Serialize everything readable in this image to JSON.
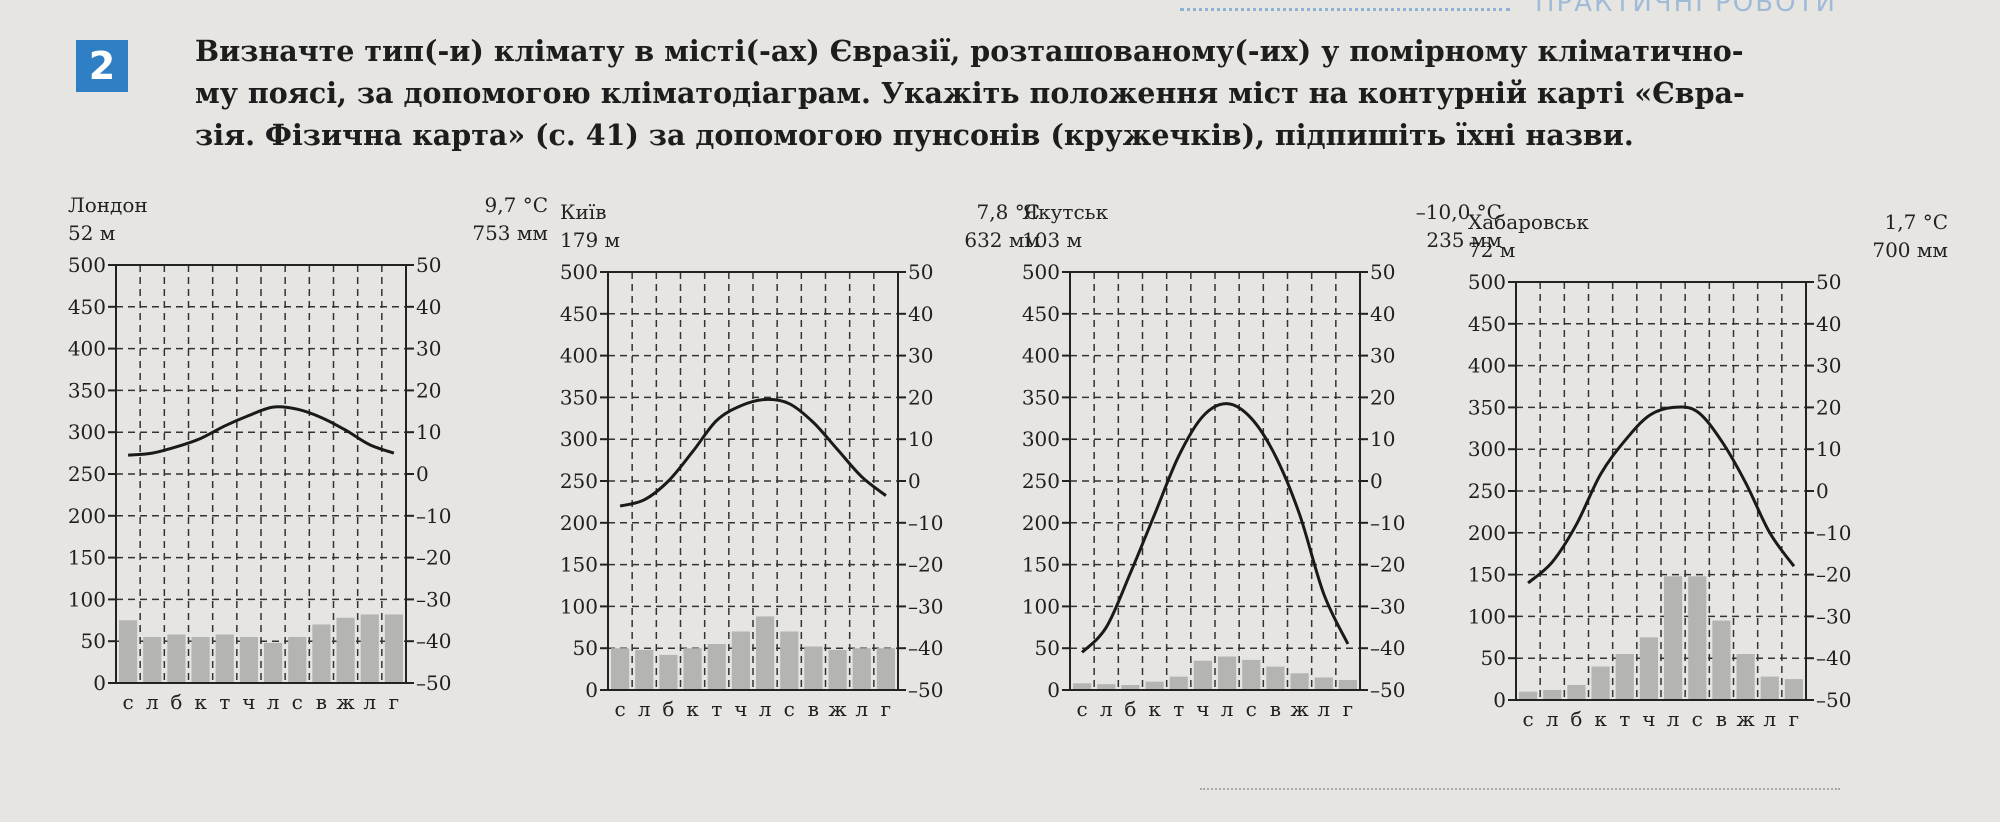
{
  "header": {
    "section_label": "ПРАКТИЧНІ РОБОТИ"
  },
  "task": {
    "number": "2",
    "lines": [
      "Визначте тип(-и) клімату в місті(-ах) Євразії, розташованому(-их) у помірному кліматично-",
      "му поясі, за допомогою кліматодіаграм. Укажіть положення міст на контурній карті «Євра-",
      "зія. Фізична карта» (с. 41) за допомогою пунсонів (кружечків), підпишіть їхні назви."
    ]
  },
  "stations": [
    {
      "name": "Лондон",
      "altitude": "52 м",
      "mean_temp": "9,7 °С",
      "annual_precip": "753 мм"
    },
    {
      "name": "Київ",
      "altitude": "179 м",
      "mean_temp": "7,8 °С",
      "annual_precip": "632 мм"
    },
    {
      "name": "Якутськ",
      "altitude": "103 м",
      "mean_temp": "–10,0 °С",
      "annual_precip": "235 мм"
    },
    {
      "name": "Хабаровськ",
      "altitude": "72 м",
      "mean_temp": "1,7 °С",
      "annual_precip": "700 мм"
    }
  ],
  "chart_data": [
    {
      "type": "bar+line",
      "title": "Лондон",
      "categories": [
        "с",
        "л",
        "б",
        "к",
        "т",
        "ч",
        "л",
        "с",
        "в",
        "ж",
        "л",
        "г"
      ],
      "left_axis": {
        "ticks": [
          0,
          50,
          100,
          150,
          200,
          250,
          300,
          350,
          400,
          450,
          500
        ],
        "ylim": [
          0,
          500
        ]
      },
      "right_axis": {
        "ticks": [
          -50,
          -40,
          -30,
          -20,
          -10,
          0,
          10,
          20,
          30,
          40,
          50
        ],
        "ylim": [
          -50,
          50
        ]
      },
      "series": [
        {
          "kind": "precipitation",
          "values": [
            75,
            55,
            58,
            55,
            58,
            55,
            48,
            55,
            70,
            78,
            82,
            82
          ]
        },
        {
          "kind": "temperature",
          "values": [
            4.5,
            5,
            6.5,
            8.5,
            11.5,
            14,
            16,
            15.5,
            13.5,
            10.5,
            7,
            5
          ]
        }
      ]
    },
    {
      "type": "bar+line",
      "title": "Київ",
      "categories": [
        "с",
        "л",
        "б",
        "к",
        "т",
        "ч",
        "л",
        "с",
        "в",
        "ж",
        "л",
        "г"
      ],
      "left_axis": {
        "ticks": [
          0,
          50,
          100,
          150,
          200,
          250,
          300,
          350,
          400,
          450,
          500
        ],
        "ylim": [
          0,
          500
        ]
      },
      "right_axis": {
        "ticks": [
          -50,
          -40,
          -30,
          -20,
          -10,
          0,
          10,
          20,
          30,
          40,
          50
        ],
        "ylim": [
          -50,
          50
        ]
      },
      "series": [
        {
          "kind": "precipitation",
          "values": [
            50,
            48,
            42,
            50,
            55,
            70,
            88,
            70,
            52,
            48,
            50,
            50
          ]
        },
        {
          "kind": "temperature",
          "values": [
            -6,
            -4.5,
            0,
            7,
            14.5,
            18,
            19.5,
            18.5,
            14,
            7.5,
            1,
            -3.5
          ]
        }
      ]
    },
    {
      "type": "bar+line",
      "title": "Якутськ",
      "categories": [
        "с",
        "л",
        "б",
        "к",
        "т",
        "ч",
        "л",
        "с",
        "в",
        "ж",
        "л",
        "г"
      ],
      "left_axis": {
        "ticks": [
          0,
          50,
          100,
          150,
          200,
          250,
          300,
          350,
          400,
          450,
          500
        ],
        "ylim": [
          0,
          500
        ]
      },
      "right_axis": {
        "ticks": [
          -50,
          -40,
          -30,
          -20,
          -10,
          0,
          10,
          20,
          30,
          40,
          50
        ],
        "ylim": [
          -50,
          50
        ]
      },
      "series": [
        {
          "kind": "precipitation",
          "values": [
            8,
            7,
            6,
            10,
            16,
            35,
            40,
            36,
            28,
            20,
            15,
            12
          ]
        },
        {
          "kind": "temperature",
          "values": [
            -41,
            -35,
            -22,
            -8,
            6,
            15.5,
            18.5,
            15,
            6,
            -8,
            -27,
            -39
          ]
        }
      ]
    },
    {
      "type": "bar+line",
      "title": "Хабаровськ",
      "categories": [
        "с",
        "л",
        "б",
        "к",
        "т",
        "ч",
        "л",
        "с",
        "в",
        "ж",
        "л",
        "г"
      ],
      "left_axis": {
        "ticks": [
          0,
          50,
          100,
          150,
          200,
          250,
          300,
          350,
          400,
          450,
          500
        ],
        "ylim": [
          0,
          500
        ]
      },
      "right_axis": {
        "ticks": [
          -50,
          -40,
          -30,
          -20,
          -10,
          0,
          10,
          20,
          30,
          40,
          50
        ],
        "ylim": [
          -50,
          50
        ]
      },
      "series": [
        {
          "kind": "precipitation",
          "values": [
            10,
            12,
            18,
            40,
            55,
            75,
            148,
            148,
            95,
            55,
            28,
            25
          ]
        },
        {
          "kind": "temperature",
          "values": [
            -22,
            -17,
            -8,
            4,
            12,
            18,
            20,
            19,
            12,
            2,
            -10,
            -18
          ]
        }
      ]
    }
  ]
}
